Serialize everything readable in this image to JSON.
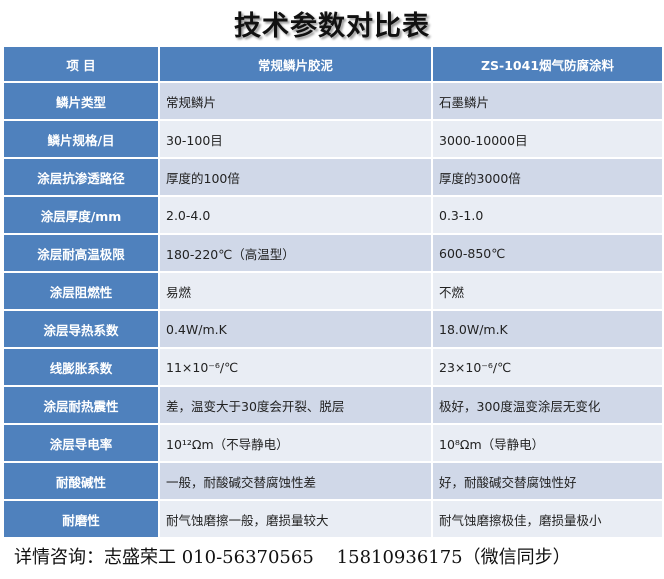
{
  "title": "技术参数对比表",
  "header": [
    "项 目",
    "常规鳞片胶泥",
    "ZS-1041烟气防腐涂料"
  ],
  "rows": [
    {
      "item": "鳞片类型",
      "a": "常规鳞片",
      "b": "石墨鳞片"
    },
    {
      "item": "鳞片规格/目",
      "a": "30-100目",
      "b": "3000-10000目"
    },
    {
      "item": "涂层抗渗透路径",
      "a": "厚度的100倍",
      "b": "厚度的3000倍"
    },
    {
      "item": "涂层厚度/mm",
      "a": "2.0-4.0",
      "b": "0.3-1.0"
    },
    {
      "item": "涂层耐高温极限",
      "a": "180-220℃（高温型）",
      "b": "600-850℃"
    },
    {
      "item": "涂层阻燃性",
      "a": "易燃",
      "b": "不燃"
    },
    {
      "item": "涂层导热系数",
      "a": "0.4W/m.K",
      "b": "18.0W/m.K"
    },
    {
      "item": "线膨胀系数",
      "a": "11×10⁻⁶/℃",
      "b": "23×10⁻⁶/℃"
    },
    {
      "item": "涂层耐热震性",
      "a": "差，温变大于30度会开裂、脱层",
      "b": "极好，300度温变涂层无变化"
    },
    {
      "item": "涂层导电率",
      "a": "10¹²Ωm（不导静电）",
      "b": "10⁸Ωm（导静电）"
    },
    {
      "item": "耐酸碱性",
      "a": "一般，耐酸碱交替腐蚀性差",
      "b": "好，耐酸碱交替腐蚀性好"
    },
    {
      "item": "耐磨性",
      "a": "耐气蚀磨擦一般，磨损量较大",
      "b": "耐气蚀磨擦极佳，磨损量极小"
    }
  ],
  "footer": "详情咨询：志盛荣工 010-56370565    15810936175（微信同步）",
  "colors": {
    "header": "#4f81bd",
    "row_dark": "#d0d8e8",
    "row_light": "#e9edf4"
  }
}
